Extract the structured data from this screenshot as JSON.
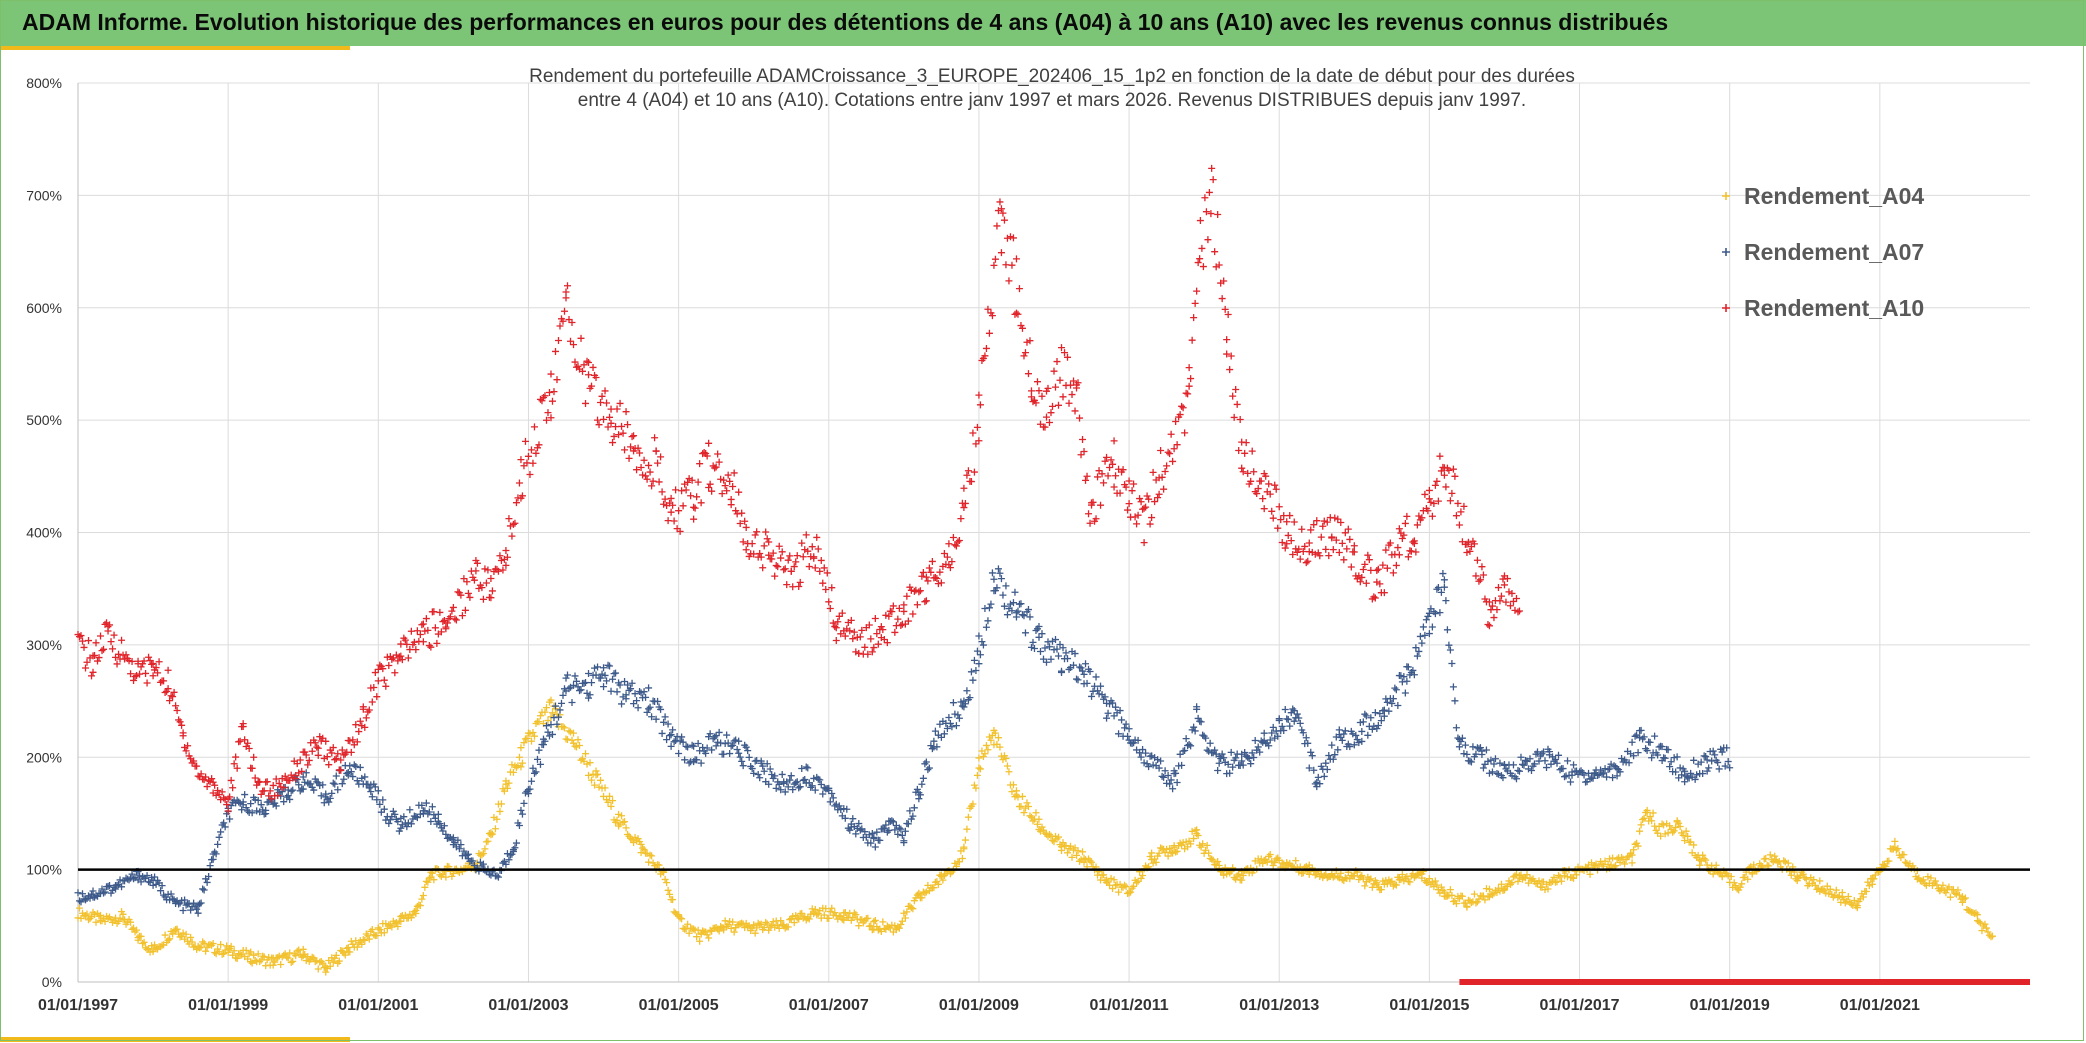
{
  "header": {
    "title": "ADAM Informe. Evolution historique des performances en euros pour des détentions de 4 ans (A04) à 10 ans (A10) avec les revenus connus distribués"
  },
  "colors": {
    "header_bg": "#7cc576",
    "accent": "#f2b91b",
    "a04": "#f2c12e",
    "a07": "#3d5a8a",
    "a10": "#e0242a",
    "baseline": "#000000",
    "grid": "#dcdcdc"
  },
  "chart_data": {
    "type": "scatter",
    "title_lines": [
      "Rendement du portefeuille ADAMCroissance_3_EUROPE_202406_15_1p2  en fonction de la date de début pour des durées",
      "entre 4 (A04) et 10 ans (A10). Cotations entre janv 1997 et mars 2026. Revenus DISTRIBUES depuis janv 1997."
    ],
    "xlabel": "",
    "ylabel": "",
    "xlim": [
      1997.0,
      2023.0
    ],
    "ylim": [
      0,
      800
    ],
    "yticks": [
      0,
      100,
      200,
      300,
      400,
      500,
      600,
      700,
      800
    ],
    "ytick_labels": [
      "0%",
      "100%",
      "200%",
      "300%",
      "400%",
      "500%",
      "600%",
      "700%",
      "800%"
    ],
    "xticks": [
      1997,
      1999,
      2001,
      2003,
      2005,
      2007,
      2009,
      2011,
      2013,
      2015,
      2017,
      2019,
      2021
    ],
    "xtick_labels": [
      "01/01/1997",
      "01/01/1999",
      "01/01/2001",
      "01/01/2003",
      "01/01/2005",
      "01/01/2007",
      "01/01/2009",
      "01/01/2011",
      "01/01/2013",
      "01/01/2015",
      "01/01/2017",
      "01/01/2019",
      "01/01/2021"
    ],
    "reference_line": 100,
    "grid": true,
    "legend_position": "top-right",
    "series": [
      {
        "name": "Rendement_A04",
        "x": [
          1997.0,
          1997.3,
          1997.6,
          1997.8,
          1998.0,
          1998.3,
          1998.6,
          1999.0,
          1999.3,
          1999.6,
          2000.0,
          2000.3,
          2000.6,
          2001.0,
          2001.3,
          2001.5,
          2001.7,
          2001.9,
          2002.1,
          2002.3,
          2002.5,
          2002.7,
          2002.9,
          2003.1,
          2003.3,
          2003.6,
          2003.9,
          2004.2,
          2004.5,
          2004.8,
          2005.0,
          2005.3,
          2005.6,
          2006.0,
          2006.4,
          2006.8,
          2007.2,
          2007.6,
          2007.9,
          2008.2,
          2008.5,
          2008.8,
          2009.0,
          2009.2,
          2009.5,
          2009.8,
          2010.1,
          2010.4,
          2010.7,
          2011.0,
          2011.3,
          2011.6,
          2011.9,
          2012.2,
          2012.5,
          2012.8,
          2013.1,
          2013.4,
          2013.7,
          2014.0,
          2014.3,
          2014.6,
          2014.9,
          2015.2,
          2015.5,
          2015.8,
          2016.0,
          2016.2,
          2016.5,
          2016.8,
          2017.1,
          2017.4,
          2017.7,
          2017.9,
          2018.1,
          2018.3,
          2018.6,
          2018.9,
          2019.1,
          2019.3,
          2019.6,
          2019.9,
          2020.2,
          2020.5,
          2020.7,
          2020.9,
          2021.2,
          2021.5,
          2021.8,
          2022.1,
          2022.3,
          2022.5
        ],
        "values": [
          62,
          55,
          58,
          40,
          28,
          48,
          32,
          28,
          22,
          18,
          25,
          12,
          30,
          45,
          55,
          62,
          95,
          98,
          100,
          105,
          130,
          175,
          200,
          225,
          240,
          215,
          180,
          145,
          120,
          95,
          55,
          40,
          50,
          48,
          50,
          62,
          60,
          50,
          48,
          75,
          92,
          115,
          195,
          220,
          165,
          140,
          120,
          110,
          90,
          80,
          110,
          120,
          130,
          100,
          95,
          110,
          105,
          100,
          95,
          95,
          85,
          90,
          95,
          80,
          70,
          80,
          85,
          95,
          85,
          95,
          100,
          105,
          110,
          150,
          135,
          140,
          110,
          95,
          85,
          100,
          110,
          95,
          85,
          75,
          70,
          90,
          120,
          95,
          85,
          75,
          55,
          40
        ]
      },
      {
        "name": "Rendement_A07",
        "x": [
          1997.0,
          1997.2,
          1997.5,
          1997.8,
          1998.0,
          1998.3,
          1998.6,
          1998.8,
          1999.0,
          1999.2,
          1999.5,
          1999.8,
          2000.0,
          2000.3,
          2000.6,
          2000.9,
          2001.1,
          2001.3,
          2001.6,
          2001.8,
          2002.0,
          2002.2,
          2002.4,
          2002.6,
          2002.8,
          2003.0,
          2003.2,
          2003.5,
          2003.8,
          2004.0,
          2004.3,
          2004.6,
          2004.9,
          2005.2,
          2005.5,
          2005.8,
          2006.1,
          2006.4,
          2006.7,
          2007.0,
          2007.3,
          2007.6,
          2007.8,
          2008.0,
          2008.2,
          2008.4,
          2008.6,
          2008.8,
          2009.0,
          2009.2,
          2009.5,
          2009.8,
          2010.1,
          2010.4,
          2010.7,
          2011.0,
          2011.3,
          2011.6,
          2011.9,
          2012.2,
          2012.5,
          2012.8,
          2013.0,
          2013.2,
          2013.5,
          2013.8,
          2014.1,
          2014.4,
          2014.7,
          2015.0,
          2015.2,
          2015.4,
          2015.7,
          2016.0,
          2016.3,
          2016.6,
          2016.9,
          2017.2,
          2017.5,
          2017.8,
          2018.1,
          2018.4,
          2018.7,
          2019.0
        ],
        "values": [
          75,
          78,
          85,
          95,
          90,
          70,
          65,
          110,
          150,
          160,
          155,
          170,
          180,
          165,
          190,
          175,
          150,
          140,
          155,
          145,
          125,
          110,
          100,
          95,
          120,
          175,
          210,
          260,
          265,
          275,
          255,
          250,
          220,
          200,
          215,
          205,
          190,
          175,
          185,
          170,
          140,
          125,
          140,
          130,
          170,
          210,
          235,
          245,
          295,
          365,
          330,
          305,
          285,
          275,
          245,
          220,
          195,
          180,
          235,
          195,
          195,
          215,
          230,
          240,
          180,
          215,
          225,
          240,
          270,
          320,
          350,
          210,
          200,
          185,
          195,
          200,
          185,
          185,
          190,
          215,
          205,
          185,
          195,
          200
        ]
      },
      {
        "name": "Rendement_A10",
        "x": [
          1997.0,
          1997.2,
          1997.4,
          1997.6,
          1997.8,
          1998.0,
          1998.2,
          1998.4,
          1998.6,
          1998.8,
          1999.0,
          1999.2,
          1999.4,
          1999.6,
          1999.9,
          2000.2,
          2000.5,
          2000.8,
          2001.0,
          2001.3,
          2001.6,
          2001.9,
          2002.1,
          2002.3,
          2002.5,
          2002.7,
          2002.9,
          2003.1,
          2003.3,
          2003.5,
          2003.8,
          2004.1,
          2004.4,
          2004.7,
          2004.9,
          2005.2,
          2005.4,
          2005.7,
          2005.9,
          2006.2,
          2006.5,
          2006.8,
          2007.1,
          2007.4,
          2007.7,
          2008.0,
          2008.3,
          2008.6,
          2008.8,
          2009.0,
          2009.1,
          2009.3,
          2009.5,
          2009.7,
          2009.9,
          2010.1,
          2010.3,
          2010.5,
          2010.8,
          2011.0,
          2011.2,
          2011.4,
          2011.6,
          2011.8,
          2011.95,
          2012.1,
          2012.3,
          2012.5,
          2012.8,
          2013.1,
          2013.4,
          2013.7,
          2014.0,
          2014.3,
          2014.6,
          2014.8,
          2015.0,
          2015.2,
          2015.5,
          2015.8,
          2016.0,
          2016.2
        ],
        "values": [
          300,
          285,
          310,
          290,
          275,
          280,
          265,
          220,
          185,
          175,
          160,
          225,
          175,
          170,
          190,
          210,
          195,
          235,
          270,
          290,
          310,
          320,
          340,
          365,
          350,
          380,
          450,
          490,
          520,
          600,
          530,
          500,
          480,
          460,
          415,
          430,
          460,
          440,
          400,
          380,
          360,
          390,
          320,
          305,
          310,
          330,
          355,
          380,
          420,
          500,
          580,
          680,
          620,
          540,
          510,
          540,
          520,
          420,
          460,
          430,
          410,
          450,
          480,
          520,
          650,
          700,
          580,
          470,
          440,
          400,
          390,
          400,
          380,
          350,
          390,
          400,
          420,
          460,
          400,
          330,
          345,
          340
        ]
      }
    ],
    "bottom_band": {
      "from": 2015.4,
      "to": 2026.2,
      "value": 0
    }
  }
}
